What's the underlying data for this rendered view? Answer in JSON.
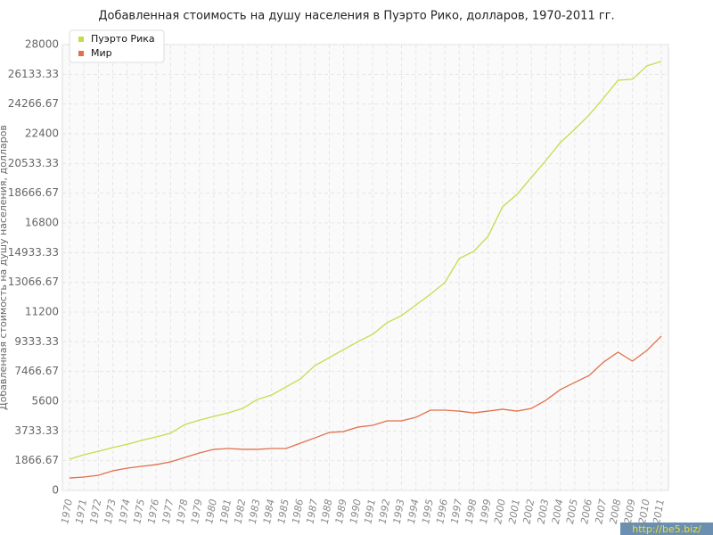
{
  "chart_data": {
    "type": "line",
    "title": "Добавленная стоимость на душу населения в Пуэрто Рико, долларов, 1970-2011 гг.",
    "y_label": "Добавленная стоимость на душу населения, долларов",
    "watermark": "http://be5.biz/",
    "categories": [
      "1970",
      "1971",
      "1972",
      "1973",
      "1974",
      "1975",
      "1976",
      "1977",
      "1978",
      "1979",
      "1980",
      "1981",
      "1982",
      "1983",
      "1984",
      "1985",
      "1986",
      "1987",
      "1988",
      "1989",
      "1990",
      "1991",
      "1992",
      "1993",
      "1994",
      "1995",
      "1996",
      "1997",
      "1998",
      "1999",
      "2000",
      "2001",
      "2002",
      "2003",
      "2004",
      "2005",
      "2006",
      "2007",
      "2008",
      "2009",
      "2010",
      "2011"
    ],
    "series": [
      {
        "name": "Пуэрто Рика",
        "color": "#c4dc4c",
        "values": [
          1960,
          2240,
          2460,
          2690,
          2900,
          3140,
          3360,
          3600,
          4140,
          4420,
          4650,
          4870,
          5150,
          5710,
          5990,
          6500,
          7000,
          7840,
          8340,
          8850,
          9350,
          9800,
          10530,
          10980,
          11650,
          12320,
          13050,
          14560,
          15010,
          15960,
          17810,
          18590,
          19660,
          20720,
          21840,
          22680,
          23580,
          24640,
          25760,
          25820,
          26660,
          26940
        ]
      },
      {
        "name": "Мир",
        "color": "#e0704c",
        "values": [
          780,
          840,
          950,
          1230,
          1400,
          1510,
          1620,
          1790,
          2070,
          2350,
          2580,
          2630,
          2580,
          2580,
          2630,
          2630,
          2970,
          3300,
          3640,
          3700,
          3980,
          4090,
          4370,
          4370,
          4590,
          5040,
          5040,
          4980,
          4870,
          4980,
          5100,
          4980,
          5150,
          5660,
          6330,
          6780,
          7220,
          8060,
          8680,
          8120,
          8790,
          9690
        ]
      }
    ],
    "ylim": [
      0,
      28000
    ],
    "yticks": [
      0,
      1866.67,
      3733.33,
      5600,
      7466.67,
      9333.33,
      11200,
      13066.67,
      14933.33,
      16800,
      18666.67,
      20533.33,
      22400,
      24266.67,
      26133.33,
      28000
    ],
    "grid": true
  }
}
